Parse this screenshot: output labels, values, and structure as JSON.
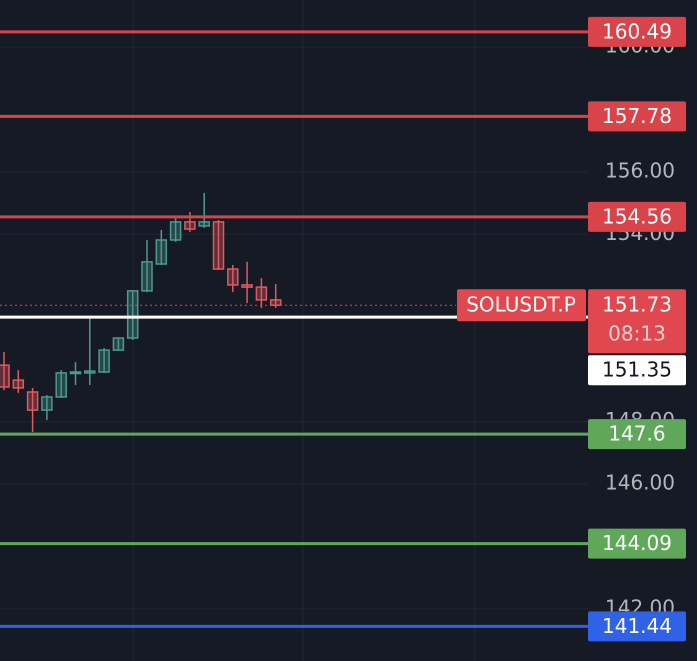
{
  "chart_data": {
    "type": "candlestick",
    "categories": [
      null,
      null,
      null,
      null,
      null,
      null,
      null,
      null,
      null,
      null,
      null,
      null,
      null,
      null,
      null,
      null,
      null,
      null,
      null,
      null
    ],
    "open": [
      149.81,
      149.33,
      148.95,
      148.37,
      148.79,
      149.56,
      149.56,
      149.59,
      150.29,
      150.68,
      152.19,
      153.05,
      153.82,
      154.4,
      154.27,
      154.4,
      152.89,
      152.38,
      152.31,
      151.9
    ],
    "high": [
      150.23,
      149.65,
      149.08,
      148.85,
      149.65,
      149.91,
      151.38,
      150.36,
      150.68,
      152.22,
      153.82,
      154.14,
      154.53,
      154.72,
      155.33,
      154.46,
      153.02,
      153.12,
      152.6,
      152.41
    ],
    "low": [
      149.01,
      148.92,
      147.67,
      148.05,
      148.76,
      149.17,
      149.17,
      149.56,
      150.29,
      150.62,
      152.15,
      153.02,
      153.76,
      154.08,
      154.21,
      152.86,
      152.15,
      151.8,
      151.64,
      151.64
    ],
    "close": [
      149.11,
      149.08,
      148.37,
      148.79,
      149.56,
      149.59,
      149.62,
      150.29,
      150.68,
      152.19,
      153.12,
      153.82,
      154.4,
      154.17,
      154.4,
      152.89,
      152.38,
      152.31,
      151.9,
      151.73
    ],
    "up_color": "#4a9c8c",
    "down_color": "#e05a5f",
    "ylim": [
      140.33,
      161.51
    ],
    "yticks": [
      {
        "value": 160,
        "label": "160.00"
      },
      {
        "value": 156,
        "label": "156.00"
      },
      {
        "value": 154,
        "label": "154.00"
      },
      {
        "value": 148,
        "label": "148.00"
      },
      {
        "value": 146,
        "label": "146.00"
      },
      {
        "value": 142,
        "label": "142.00"
      }
    ],
    "grid": true,
    "levels": [
      {
        "value": 160.49,
        "color": "#d9444b"
      },
      {
        "value": 157.78,
        "color": "#d9444b"
      },
      {
        "value": 154.56,
        "color": "#d9444b"
      },
      {
        "value": 151.35,
        "color": "#ffffff"
      },
      {
        "value": 147.6,
        "color": "#5fa85a"
      },
      {
        "value": 144.09,
        "color": "#5fa85a"
      },
      {
        "value": 141.44,
        "color": "#2f62e6"
      }
    ],
    "last_price": {
      "symbol": "SOLUSDT.P",
      "value": 151.73,
      "countdown": "08:13",
      "color": "#e0474e"
    }
  }
}
